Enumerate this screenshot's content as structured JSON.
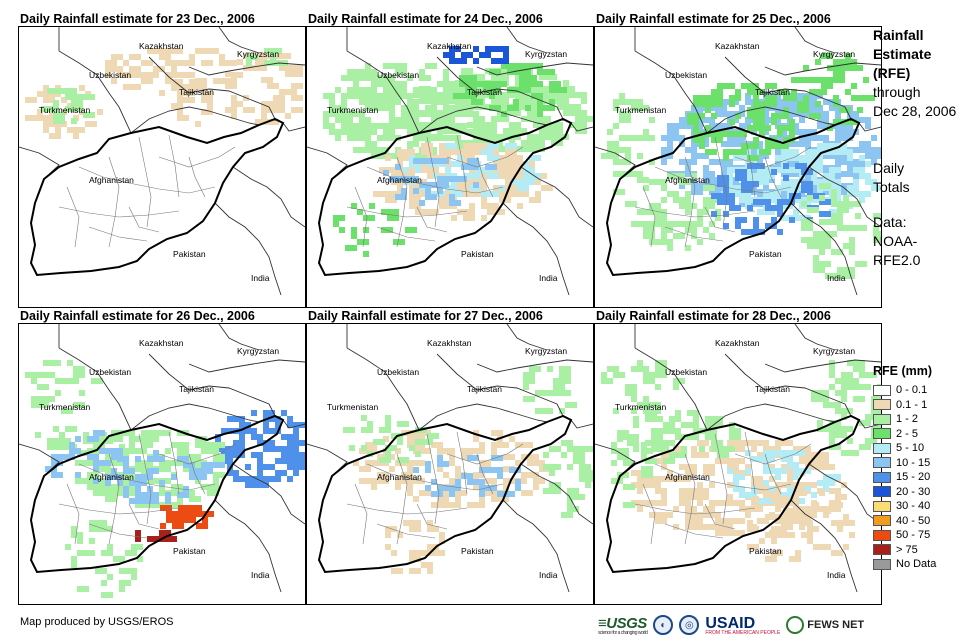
{
  "panels": [
    {
      "title": "Daily Rainfall estimate for 23 Dec., 2006"
    },
    {
      "title": "Daily Rainfall estimate for 24 Dec., 2006"
    },
    {
      "title": "Daily Rainfall estimate for 25 Dec., 2006"
    },
    {
      "title": "Daily Rainfall estimate for 26 Dec., 2006"
    },
    {
      "title": "Daily Rainfall estimate for 27 Dec., 2006"
    },
    {
      "title": "Daily Rainfall estimate for 28 Dec., 2006"
    }
  ],
  "map_labels": {
    "kazakhstan": "Kazakhstan",
    "kyrgyzstan": "Kyrgyzstan",
    "uzbekistan": "Uzbekistan",
    "tajikistan": "Tajikistan",
    "turkmenistan": "Turkmenistan",
    "afghanistan": "Afghanistan",
    "pakistan": "Pakistan",
    "india": "India"
  },
  "sidebar": {
    "title_line1": "Rainfall",
    "title_line2": "Estimate",
    "title_line3": "(RFE)",
    "through": "through",
    "date": "Dec 28, 2006",
    "daily1": "Daily",
    "daily2": "Totals",
    "data_label": "Data:",
    "source1": "NOAA-",
    "source2": "RFE2.0"
  },
  "legend": {
    "title": "RFE (mm)",
    "items": [
      {
        "label": "0 - 0.1",
        "color": "#ffffff"
      },
      {
        "label": "0.1 - 1",
        "color": "#efd9b4"
      },
      {
        "label": "1 - 2",
        "color": "#a9f0a4"
      },
      {
        "label": "2 - 5",
        "color": "#6be06b"
      },
      {
        "label": "5 - 10",
        "color": "#b3ecf5"
      },
      {
        "label": "10 - 15",
        "color": "#8cc4f2"
      },
      {
        "label": "15 - 20",
        "color": "#4f91ea"
      },
      {
        "label": "20 - 30",
        "color": "#1c56d8"
      },
      {
        "label": "30 - 40",
        "color": "#f9dd74"
      },
      {
        "label": "40 - 50",
        "color": "#f29b1c"
      },
      {
        "label": "50 - 75",
        "color": "#ec4b12"
      },
      {
        "label": "> 75",
        "color": "#a8201c"
      },
      {
        "label": "No Data",
        "color": "#9a9a9a"
      }
    ]
  },
  "footer": {
    "credit": "Map produced by USGS/EROS",
    "logo_usgs": "≡USGS",
    "logo_usgs_tag": "science for a changing world",
    "logo_usaid": "USAID",
    "logo_usaid_tag": "FROM THE AMERICAN PEOPLE",
    "logo_fews": "FEWS NET"
  }
}
